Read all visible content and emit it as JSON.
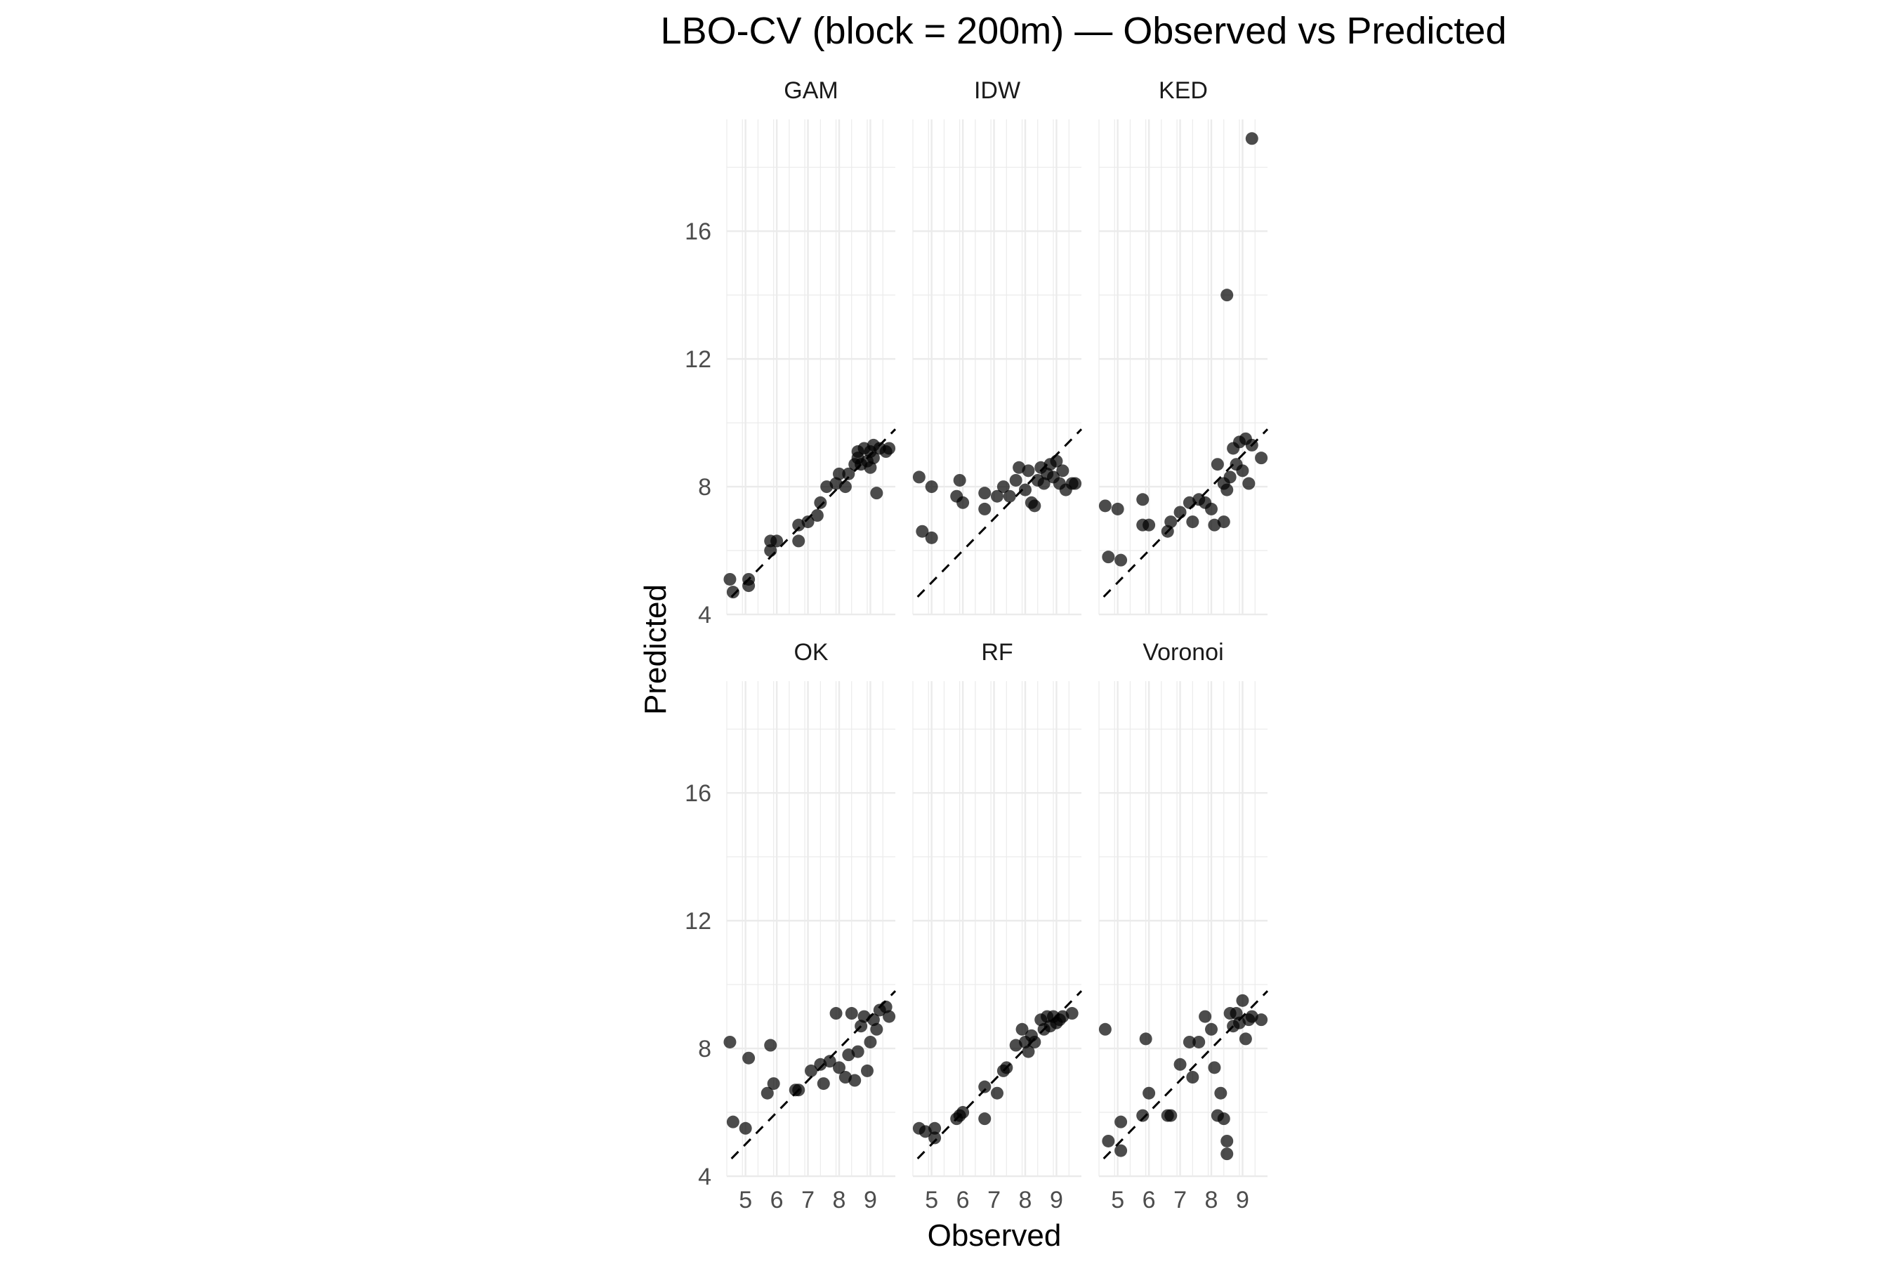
{
  "chart_data": {
    "type": "scatter",
    "title": "LBO-CV (block = 200m) — Observed vs Predicted",
    "xlabel": "Observed",
    "ylabel": "Predicted",
    "xlim": [
      4.4,
      9.8
    ],
    "ylim": [
      4,
      19.5
    ],
    "x_ticks": [
      5,
      6,
      7,
      8,
      9
    ],
    "y_ticks": [
      4,
      8,
      12,
      16
    ],
    "reference_line": "y = x (dashed)",
    "grid": true,
    "facets": [
      {
        "name": "GAM",
        "points": [
          [
            4.5,
            5.1
          ],
          [
            4.6,
            4.7
          ],
          [
            5.1,
            4.9
          ],
          [
            5.1,
            5.1
          ],
          [
            5.8,
            6.0
          ],
          [
            5.8,
            6.3
          ],
          [
            6.0,
            6.3
          ],
          [
            6.7,
            6.8
          ],
          [
            6.7,
            6.3
          ],
          [
            7.0,
            6.9
          ],
          [
            7.3,
            7.1
          ],
          [
            7.4,
            7.5
          ],
          [
            7.6,
            8.0
          ],
          [
            7.9,
            8.1
          ],
          [
            8.0,
            8.4
          ],
          [
            8.2,
            8.0
          ],
          [
            8.3,
            8.4
          ],
          [
            8.5,
            8.7
          ],
          [
            8.6,
            8.9
          ],
          [
            8.6,
            9.1
          ],
          [
            8.7,
            8.7
          ],
          [
            8.8,
            9.2
          ],
          [
            8.9,
            8.8
          ],
          [
            9.0,
            9.1
          ],
          [
            9.0,
            8.6
          ],
          [
            9.1,
            9.3
          ],
          [
            9.1,
            8.9
          ],
          [
            9.2,
            7.8
          ],
          [
            9.3,
            9.2
          ],
          [
            9.5,
            9.1
          ],
          [
            9.6,
            9.2
          ]
        ]
      },
      {
        "name": "IDW",
        "points": [
          [
            4.6,
            8.3
          ],
          [
            4.7,
            6.6
          ],
          [
            5.0,
            8.0
          ],
          [
            5.0,
            6.4
          ],
          [
            5.8,
            7.7
          ],
          [
            5.9,
            8.2
          ],
          [
            6.0,
            7.5
          ],
          [
            6.7,
            7.3
          ],
          [
            6.7,
            7.8
          ],
          [
            7.1,
            7.7
          ],
          [
            7.3,
            8.0
          ],
          [
            7.5,
            7.7
          ],
          [
            7.7,
            8.2
          ],
          [
            7.8,
            8.6
          ],
          [
            8.0,
            7.9
          ],
          [
            8.1,
            8.5
          ],
          [
            8.2,
            7.5
          ],
          [
            8.3,
            7.4
          ],
          [
            8.4,
            8.2
          ],
          [
            8.5,
            8.6
          ],
          [
            8.6,
            8.1
          ],
          [
            8.7,
            8.4
          ],
          [
            8.8,
            8.7
          ],
          [
            8.9,
            8.3
          ],
          [
            9.0,
            8.8
          ],
          [
            9.1,
            8.1
          ],
          [
            9.2,
            8.5
          ],
          [
            9.3,
            7.9
          ],
          [
            9.5,
            8.1
          ],
          [
            9.6,
            8.1
          ]
        ]
      },
      {
        "name": "KED",
        "points": [
          [
            4.6,
            7.4
          ],
          [
            4.7,
            5.8
          ],
          [
            5.0,
            7.3
          ],
          [
            5.1,
            5.7
          ],
          [
            5.8,
            7.6
          ],
          [
            5.8,
            6.8
          ],
          [
            6.0,
            6.8
          ],
          [
            6.6,
            6.6
          ],
          [
            6.7,
            6.9
          ],
          [
            7.0,
            7.2
          ],
          [
            7.3,
            7.5
          ],
          [
            7.4,
            6.9
          ],
          [
            7.6,
            7.6
          ],
          [
            7.8,
            7.5
          ],
          [
            8.0,
            7.3
          ],
          [
            8.1,
            6.8
          ],
          [
            8.2,
            8.7
          ],
          [
            8.4,
            6.9
          ],
          [
            8.4,
            8.1
          ],
          [
            8.5,
            14.0
          ],
          [
            8.5,
            7.9
          ],
          [
            8.6,
            8.3
          ],
          [
            8.7,
            9.2
          ],
          [
            8.8,
            8.7
          ],
          [
            8.9,
            9.4
          ],
          [
            9.0,
            8.5
          ],
          [
            9.1,
            9.5
          ],
          [
            9.2,
            8.1
          ],
          [
            9.3,
            9.3
          ],
          [
            9.3,
            18.9
          ],
          [
            9.6,
            8.9
          ]
        ]
      },
      {
        "name": "OK",
        "points": [
          [
            4.5,
            8.2
          ],
          [
            4.6,
            5.7
          ],
          [
            5.0,
            5.5
          ],
          [
            5.1,
            7.7
          ],
          [
            5.7,
            6.6
          ],
          [
            5.8,
            8.1
          ],
          [
            5.9,
            6.9
          ],
          [
            6.6,
            6.7
          ],
          [
            6.7,
            6.7
          ],
          [
            7.1,
            7.3
          ],
          [
            7.4,
            7.5
          ],
          [
            7.5,
            6.9
          ],
          [
            7.7,
            7.6
          ],
          [
            7.9,
            9.1
          ],
          [
            8.0,
            7.4
          ],
          [
            8.2,
            7.1
          ],
          [
            8.3,
            7.8
          ],
          [
            8.4,
            9.1
          ],
          [
            8.5,
            7.0
          ],
          [
            8.6,
            7.9
          ],
          [
            8.7,
            8.7
          ],
          [
            8.8,
            9.0
          ],
          [
            8.9,
            7.3
          ],
          [
            9.0,
            8.2
          ],
          [
            9.1,
            8.9
          ],
          [
            9.2,
            8.6
          ],
          [
            9.3,
            9.2
          ],
          [
            9.5,
            9.3
          ],
          [
            9.6,
            9.0
          ]
        ]
      },
      {
        "name": "RF",
        "points": [
          [
            4.6,
            5.5
          ],
          [
            4.8,
            5.4
          ],
          [
            5.1,
            5.5
          ],
          [
            5.1,
            5.2
          ],
          [
            5.8,
            5.8
          ],
          [
            5.9,
            5.9
          ],
          [
            6.0,
            6.0
          ],
          [
            6.7,
            6.8
          ],
          [
            6.7,
            5.8
          ],
          [
            7.1,
            6.6
          ],
          [
            7.3,
            7.3
          ],
          [
            7.4,
            7.4
          ],
          [
            7.7,
            8.1
          ],
          [
            7.9,
            8.6
          ],
          [
            8.0,
            8.2
          ],
          [
            8.1,
            7.9
          ],
          [
            8.2,
            8.4
          ],
          [
            8.3,
            8.2
          ],
          [
            8.5,
            8.9
          ],
          [
            8.6,
            8.6
          ],
          [
            8.7,
            9.0
          ],
          [
            8.8,
            8.7
          ],
          [
            8.9,
            9.0
          ],
          [
            9.0,
            8.8
          ],
          [
            9.1,
            8.9
          ],
          [
            9.2,
            9.0
          ],
          [
            9.5,
            9.1
          ]
        ]
      },
      {
        "name": "Voronoi",
        "points": [
          [
            4.6,
            8.6
          ],
          [
            4.7,
            5.1
          ],
          [
            5.1,
            5.7
          ],
          [
            5.1,
            4.8
          ],
          [
            5.8,
            5.9
          ],
          [
            5.9,
            8.3
          ],
          [
            6.0,
            6.6
          ],
          [
            6.6,
            5.9
          ],
          [
            6.7,
            5.9
          ],
          [
            7.0,
            7.5
          ],
          [
            7.3,
            8.2
          ],
          [
            7.4,
            7.1
          ],
          [
            7.6,
            8.2
          ],
          [
            7.8,
            9.0
          ],
          [
            8.0,
            8.6
          ],
          [
            8.1,
            7.4
          ],
          [
            8.2,
            5.9
          ],
          [
            8.3,
            6.6
          ],
          [
            8.4,
            5.8
          ],
          [
            8.5,
            5.1
          ],
          [
            8.5,
            4.7
          ],
          [
            8.6,
            9.1
          ],
          [
            8.7,
            8.7
          ],
          [
            8.8,
            9.1
          ],
          [
            8.9,
            8.8
          ],
          [
            9.0,
            9.5
          ],
          [
            9.1,
            8.3
          ],
          [
            9.2,
            8.9
          ],
          [
            9.3,
            9.0
          ],
          [
            9.6,
            8.9
          ]
        ]
      }
    ]
  }
}
